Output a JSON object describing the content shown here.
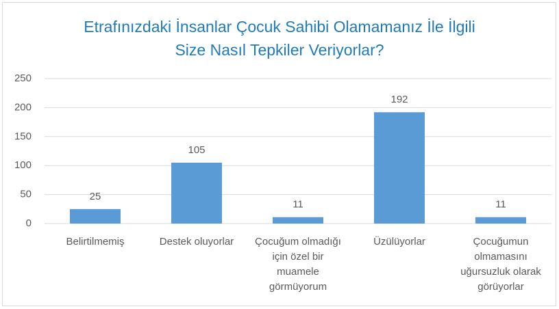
{
  "chart_data": {
    "type": "bar",
    "title": "Etrafınızdaki İnsanlar Çocuk Sahibi Olamamanız İle İlgili Size Nasıl Tepkiler Veriyorlar?",
    "categories": [
      "Belirtilmemiş",
      "Destek oluyorlar",
      "Çocuğum olmadığı için özel bir muamele görmüyorum",
      "Üzülüyorlar",
      "Çocuğumun olmamasını uğursuzluk olarak görüyorlar"
    ],
    "values": [
      25,
      105,
      11,
      192,
      11
    ],
    "color": "#5b9bd5",
    "ylim": [
      0,
      250
    ],
    "yticks": [
      0,
      50,
      100,
      150,
      200,
      250
    ],
    "grid": true
  }
}
